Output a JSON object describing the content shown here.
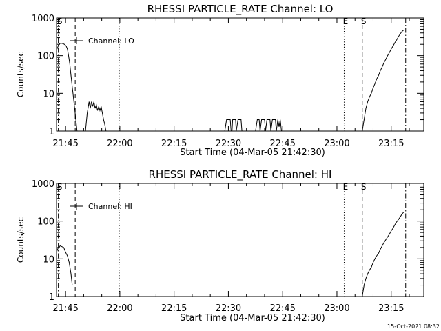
{
  "chart_data": [
    {
      "type": "line",
      "title": "RHESSI PARTICLE_RATE Channel: LO",
      "xlabel": "Start Time (04-Mar-05 21:42:30)",
      "ylabel": "Counts/sec",
      "yscale": "log",
      "xlim": [
        "21:42:30",
        "23:24:00"
      ],
      "ylim": [
        1,
        1000
      ],
      "x_ticks": [
        "21:45",
        "22:00",
        "22:15",
        "22:30",
        "22:45",
        "23:00",
        "23:15"
      ],
      "y_ticks": [
        "1",
        "10",
        "100",
        "1000"
      ],
      "legend": {
        "label": "Channel: LO",
        "position": "top-left"
      },
      "markers": [
        {
          "label": "S",
          "time": "21:43:00",
          "style": "dash-dot"
        },
        {
          "label": "",
          "time": "21:47:40",
          "style": "dashed"
        },
        {
          "label": "",
          "time": "21:59:50",
          "style": "dotted"
        },
        {
          "label": "E",
          "time": "23:02:00",
          "style": "dotted"
        },
        {
          "label": "S",
          "time": "23:07:00",
          "style": "dashed"
        },
        {
          "label": "",
          "time": "23:19:00",
          "style": "dash-dot"
        }
      ],
      "series": [
        {
          "segments": [
            [
              [
                "21:42:30",
                140
              ],
              [
                "21:43:10",
                200
              ],
              [
                "21:43:40",
                215
              ],
              [
                "21:44:10",
                210
              ],
              [
                "21:44:40",
                200
              ],
              [
                "21:45:10",
                180
              ],
              [
                "21:45:30",
                150
              ],
              [
                "21:45:50",
                100
              ],
              [
                "21:46:10",
                60
              ],
              [
                "21:46:30",
                30
              ],
              [
                "21:46:50",
                15
              ],
              [
                "21:47:10",
                8
              ],
              [
                "21:47:30",
                4
              ],
              [
                "21:47:50",
                2
              ],
              [
                "21:48:10",
                1
              ]
            ],
            [
              [
                "21:50:30",
                1
              ],
              [
                "21:51:00",
                3
              ],
              [
                "21:51:30",
                6
              ],
              [
                "21:51:50",
                4
              ],
              [
                "21:52:10",
                6
              ],
              [
                "21:52:30",
                4.5
              ],
              [
                "21:52:50",
                6
              ],
              [
                "21:53:10",
                4
              ],
              [
                "21:53:30",
                5
              ],
              [
                "21:53:50",
                3.5
              ],
              [
                "21:54:10",
                4.5
              ],
              [
                "21:54:30",
                3.5
              ],
              [
                "21:54:50",
                4.5
              ],
              [
                "21:55:10",
                3
              ],
              [
                "21:55:30",
                2
              ],
              [
                "21:55:50",
                1.5
              ],
              [
                "21:56:10",
                1
              ]
            ],
            [
              [
                "22:29:00",
                1
              ],
              [
                "22:29:30",
                2
              ],
              [
                "22:30:00",
                2
              ],
              [
                "22:30:30",
                2
              ],
              [
                "22:30:45",
                1
              ],
              [
                "22:31:00",
                1
              ],
              [
                "22:31:10",
                2
              ],
              [
                "22:32:00",
                2
              ],
              [
                "22:32:10",
                1
              ],
              [
                "22:32:40",
                2
              ],
              [
                "22:33:30",
                2
              ],
              [
                "22:33:45",
                1
              ],
              [
                "22:34:00",
                1
              ]
            ],
            [
              [
                "22:37:30",
                1
              ],
              [
                "22:38:00",
                2
              ],
              [
                "22:38:30",
                2
              ],
              [
                "22:38:45",
                1
              ],
              [
                "22:39:10",
                2
              ],
              [
                "22:40:00",
                2
              ],
              [
                "22:40:15",
                1
              ],
              [
                "22:40:40",
                2
              ],
              [
                "22:41:30",
                2
              ],
              [
                "22:41:45",
                1
              ],
              [
                "22:42:10",
                2
              ],
              [
                "22:43:00",
                2
              ],
              [
                "22:43:15",
                1
              ],
              [
                "22:43:40",
                2
              ],
              [
                "22:44:00",
                1.3
              ],
              [
                "22:44:20",
                2
              ],
              [
                "22:44:40",
                1
              ],
              [
                "22:45:00",
                1
              ]
            ],
            [
              [
                "23:07:00",
                1
              ],
              [
                "23:07:30",
                2
              ],
              [
                "23:08:00",
                4
              ],
              [
                "23:08:30",
                6
              ],
              [
                "23:09:00",
                8
              ],
              [
                "23:09:30",
                10
              ],
              [
                "23:10:00",
                14
              ],
              [
                "23:10:30",
                18
              ],
              [
                "23:11:00",
                24
              ],
              [
                "23:11:30",
                30
              ],
              [
                "23:12:00",
                40
              ],
              [
                "23:12:30",
                50
              ],
              [
                "23:13:00",
                65
              ],
              [
                "23:13:30",
                80
              ],
              [
                "23:14:00",
                100
              ],
              [
                "23:14:30",
                120
              ],
              [
                "23:15:00",
                150
              ],
              [
                "23:15:30",
                180
              ],
              [
                "23:16:00",
                220
              ],
              [
                "23:16:30",
                260
              ],
              [
                "23:17:00",
                320
              ],
              [
                "23:17:30",
                380
              ],
              [
                "23:18:00",
                440
              ],
              [
                "23:18:30",
                480
              ]
            ]
          ]
        }
      ]
    },
    {
      "type": "line",
      "title": "RHESSI PARTICLE_RATE Channel: HI",
      "xlabel": "Start Time (04-Mar-05 21:42:30)",
      "ylabel": "Counts/sec",
      "yscale": "log",
      "xlim": [
        "21:42:30",
        "23:24:00"
      ],
      "ylim": [
        1,
        1000
      ],
      "x_ticks": [
        "21:45",
        "22:00",
        "22:15",
        "22:30",
        "22:45",
        "23:00",
        "23:15"
      ],
      "y_ticks": [
        "1",
        "10",
        "100",
        "1000"
      ],
      "legend": {
        "label": "Channel: HI",
        "position": "top-left"
      },
      "markers": [
        {
          "label": "S",
          "time": "21:43:00",
          "style": "dash-dot"
        },
        {
          "label": "",
          "time": "21:47:40",
          "style": "dashed"
        },
        {
          "label": "",
          "time": "21:59:50",
          "style": "dotted"
        },
        {
          "label": "E",
          "time": "23:02:00",
          "style": "dotted"
        },
        {
          "label": "S",
          "time": "23:07:00",
          "style": "dashed"
        },
        {
          "label": "",
          "time": "23:19:00",
          "style": "dash-dot"
        }
      ],
      "series": [
        {
          "segments": [
            [
              [
                "21:42:30",
                15
              ],
              [
                "21:43:00",
                20
              ],
              [
                "21:43:30",
                22
              ],
              [
                "21:44:00",
                21
              ],
              [
                "21:44:30",
                20
              ],
              [
                "21:45:00",
                15
              ],
              [
                "21:45:30",
                12
              ],
              [
                "21:46:00",
                8
              ],
              [
                "21:46:30",
                4
              ],
              [
                "21:46:50",
                2
              ]
            ],
            [
              [
                "23:07:00",
                1
              ],
              [
                "23:07:30",
                2
              ],
              [
                "23:08:00",
                3
              ],
              [
                "23:08:30",
                4
              ],
              [
                "23:09:00",
                5
              ],
              [
                "23:09:30",
                6
              ],
              [
                "23:10:00",
                8
              ],
              [
                "23:10:30",
                10
              ],
              [
                "23:11:00",
                12
              ],
              [
                "23:11:30",
                14
              ],
              [
                "23:12:00",
                18
              ],
              [
                "23:12:30",
                22
              ],
              [
                "23:13:00",
                27
              ],
              [
                "23:13:30",
                32
              ],
              [
                "23:14:00",
                38
              ],
              [
                "23:14:30",
                45
              ],
              [
                "23:15:00",
                55
              ],
              [
                "23:15:30",
                65
              ],
              [
                "23:16:00",
                80
              ],
              [
                "23:16:30",
                95
              ],
              [
                "23:17:00",
                110
              ],
              [
                "23:17:30",
                130
              ],
              [
                "23:18:00",
                155
              ],
              [
                "23:18:30",
                175
              ]
            ]
          ]
        }
      ]
    }
  ],
  "footer": {
    "stamp": "15-Oct-2021 08:32"
  }
}
